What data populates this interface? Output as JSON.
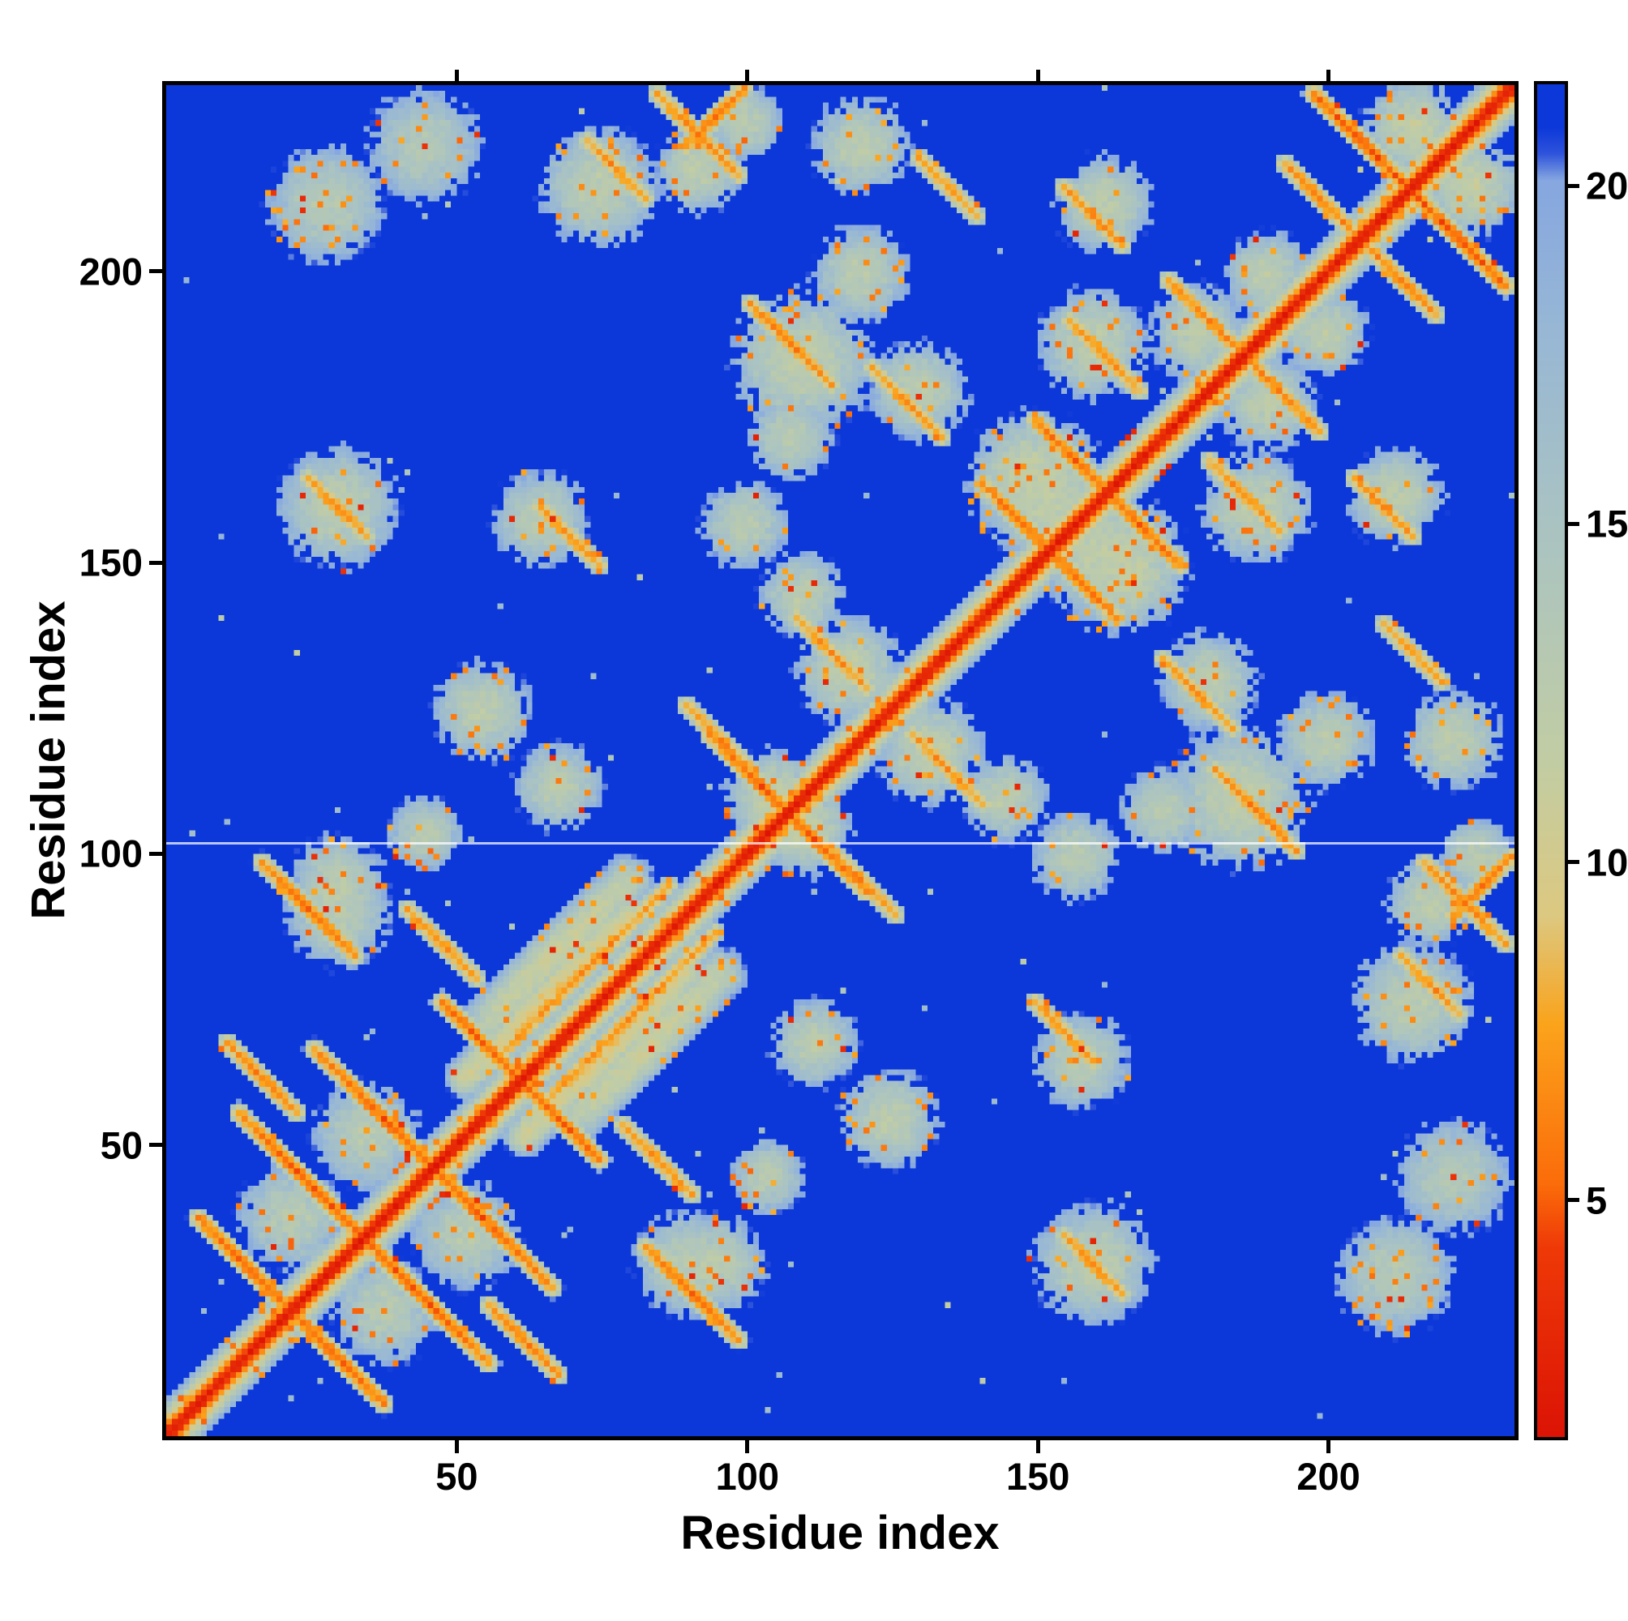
{
  "figure": {
    "background": "#ffffff"
  },
  "chart_data": {
    "type": "heatmap",
    "title": "",
    "xlabel": "Residue index",
    "ylabel": "Residue index",
    "x_range": [
      1,
      232
    ],
    "y_range": [
      1,
      232
    ],
    "x_ticks": [
      50,
      100,
      150,
      200
    ],
    "y_ticks": [
      50,
      100,
      150,
      200
    ],
    "grid": false,
    "colorbar": {
      "position": "right",
      "ticks": [
        5,
        10,
        15,
        20
      ],
      "vmin": 1.5,
      "vmax": 21.5
    },
    "colormap": [
      {
        "v": 1.5,
        "c": "#dc1405"
      },
      {
        "v": 4.3,
        "c": "#ef3a08"
      },
      {
        "v": 5.2,
        "c": "#fb6c0a"
      },
      {
        "v": 7.6,
        "c": "#fba41c"
      },
      {
        "v": 9.2,
        "c": "#ddc981"
      },
      {
        "v": 11.5,
        "c": "#c2cda4"
      },
      {
        "v": 14.5,
        "c": "#adc5bf"
      },
      {
        "v": 18.0,
        "c": "#97b7d6"
      },
      {
        "v": 20.1,
        "c": "#86a7e0"
      },
      {
        "v": 20.5,
        "c": "#2e53dc"
      },
      {
        "v": 20.9,
        "c": "#0c38d9"
      },
      {
        "v": 25.0,
        "c": "#0c38d9"
      }
    ],
    "matrix_size": 232,
    "background_value": 25,
    "diagonal": {
      "self": 2.2,
      "base": 3.8,
      "step": 2.9,
      "width": 7
    },
    "chain_break_row": 102,
    "features": [
      {
        "t": "a",
        "i": 15,
        "j": 29,
        "l": 9,
        "d": 5
      },
      {
        "t": "a",
        "i": 27,
        "j": 42,
        "l": 8,
        "d": 5
      },
      {
        "t": "a",
        "i": 39,
        "j": 54,
        "l": 8,
        "d": 5.2
      },
      {
        "t": "a",
        "i": 22,
        "j": 47,
        "l": 9,
        "d": 5.5
      },
      {
        "t": "a",
        "i": 34,
        "j": 59,
        "l": 8,
        "d": 5.5
      },
      {
        "t": "a",
        "i": 17,
        "j": 62,
        "l": 6,
        "d": 6
      },
      {
        "t": "a",
        "i": 55,
        "j": 68,
        "l": 7,
        "d": 5
      },
      {
        "t": "a",
        "i": 25,
        "j": 91,
        "l": 8,
        "d": 5.5
      },
      {
        "t": "a",
        "i": 48,
        "j": 85,
        "l": 6,
        "d": 6.5
      },
      {
        "t": "p",
        "i": 72,
        "j": 80,
        "l": 15,
        "d": 6.5
      },
      {
        "t": "p",
        "i": 66,
        "j": 76,
        "l": 14,
        "d": 9.5,
        "w": 3
      },
      {
        "t": "p",
        "i": 68,
        "j": 84,
        "l": 12,
        "d": 11,
        "w": 4
      },
      {
        "t": "a",
        "i": 103,
        "j": 112,
        "l": 9,
        "d": 5
      },
      {
        "t": "a",
        "i": 96,
        "j": 120,
        "l": 6,
        "d": 6.5
      },
      {
        "t": "a",
        "i": 115,
        "j": 135,
        "l": 6,
        "d": 6.5
      },
      {
        "t": "a",
        "i": 148,
        "j": 157,
        "l": 7,
        "d": 5.5
      },
      {
        "t": "a",
        "i": 157,
        "j": 168,
        "l": 7,
        "d": 5.5
      },
      {
        "t": "a",
        "i": 70,
        "j": 155,
        "l": 5,
        "d": 6.5
      },
      {
        "t": "a",
        "i": 108,
        "j": 188,
        "l": 7,
        "d": 6
      },
      {
        "t": "a",
        "i": 128,
        "j": 178,
        "l": 6,
        "d": 6.5
      },
      {
        "t": "a",
        "i": 162,
        "j": 186,
        "l": 6,
        "d": 6.5
      },
      {
        "t": "a",
        "i": 180,
        "j": 192,
        "l": 7,
        "d": 6
      },
      {
        "t": "a",
        "i": 207,
        "j": 222,
        "l": 9,
        "d": 4.8
      },
      {
        "t": "a",
        "i": 199,
        "j": 213,
        "l": 6,
        "d": 6
      },
      {
        "t": "a",
        "i": 92,
        "j": 224,
        "l": 7,
        "d": 6
      },
      {
        "t": "p",
        "i": 95,
        "j": 227,
        "l": 5,
        "d": 5.5
      },
      {
        "t": "a",
        "i": 160,
        "j": 210,
        "l": 5,
        "d": 6.5
      },
      {
        "t": "a",
        "i": 30,
        "j": 160,
        "l": 5,
        "d": 6.5
      },
      {
        "t": "a",
        "i": 78,
        "j": 218,
        "l": 5,
        "d": 6.5
      },
      {
        "t": "a",
        "i": 135,
        "j": 215,
        "l": 5,
        "d": 7
      },
      {
        "t": "b",
        "i": 30,
        "j": 95,
        "l": 9,
        "d": 12.5
      },
      {
        "t": "b",
        "i": 55,
        "j": 125,
        "l": 9,
        "d": 12.5
      },
      {
        "t": "b",
        "i": 68,
        "j": 112,
        "l": 8,
        "d": 12.5
      },
      {
        "t": "b",
        "i": 30,
        "j": 160,
        "l": 11,
        "d": 12.5
      },
      {
        "t": "b",
        "i": 65,
        "j": 158,
        "l": 9,
        "d": 12.8
      },
      {
        "t": "b",
        "i": 100,
        "j": 157,
        "l": 8,
        "d": 12.8
      },
      {
        "t": "b",
        "i": 118,
        "j": 132,
        "l": 10,
        "d": 12.3
      },
      {
        "t": "b",
        "i": 150,
        "j": 165,
        "l": 12,
        "d": 11.8
      },
      {
        "t": "b",
        "i": 110,
        "j": 185,
        "l": 13,
        "d": 12.2
      },
      {
        "t": "b",
        "i": 130,
        "j": 180,
        "l": 9,
        "d": 12.5
      },
      {
        "t": "b",
        "i": 120,
        "j": 200,
        "l": 9,
        "d": 12.8
      },
      {
        "t": "b",
        "i": 160,
        "j": 188,
        "l": 10,
        "d": 12.3
      },
      {
        "t": "b",
        "i": 215,
        "j": 225,
        "l": 9,
        "d": 11.8
      },
      {
        "t": "b",
        "i": 92,
        "j": 218,
        "l": 8,
        "d": 12.5
      },
      {
        "t": "b",
        "i": 28,
        "j": 212,
        "l": 11,
        "d": 13.2
      },
      {
        "t": "b",
        "i": 45,
        "j": 222,
        "l": 11,
        "d": 13.6
      },
      {
        "t": "b",
        "i": 75,
        "j": 215,
        "l": 11,
        "d": 12.6
      },
      {
        "t": "b",
        "i": 120,
        "j": 222,
        "l": 9,
        "d": 12.6
      },
      {
        "t": "b",
        "i": 162,
        "j": 212,
        "l": 9,
        "d": 12.6
      },
      {
        "t": "b",
        "i": 105,
        "j": 110,
        "l": 9,
        "d": 12
      },
      {
        "t": "b",
        "i": 152,
        "j": 162,
        "l": 12,
        "d": 12
      },
      {
        "t": "b",
        "i": 178,
        "j": 190,
        "l": 9,
        "d": 12.5
      },
      {
        "t": "b",
        "i": 190,
        "j": 200,
        "l": 8,
        "d": 12.5
      },
      {
        "t": "b",
        "i": 108,
        "j": 172,
        "l": 8,
        "d": 13
      },
      {
        "t": "b",
        "i": 110,
        "j": 145,
        "l": 8,
        "d": 12.8
      },
      {
        "t": "b",
        "i": 22,
        "j": 38,
        "l": 10,
        "d": 13
      },
      {
        "t": "b",
        "i": 35,
        "j": 52,
        "l": 10,
        "d": 13
      },
      {
        "t": "b",
        "i": 30,
        "j": 90,
        "l": 10,
        "d": 13
      },
      {
        "t": "b",
        "i": 100,
        "j": 226,
        "l": 7,
        "d": 12.5
      },
      {
        "t": "b",
        "i": 45,
        "j": 104,
        "l": 7,
        "d": 13
      }
    ],
    "render": {
      "seed": 42,
      "jitter": 1.6,
      "speckle_orange_p": 0.05,
      "speckle_red_p": 0.01,
      "blue_speck_p": 0.002
    }
  }
}
